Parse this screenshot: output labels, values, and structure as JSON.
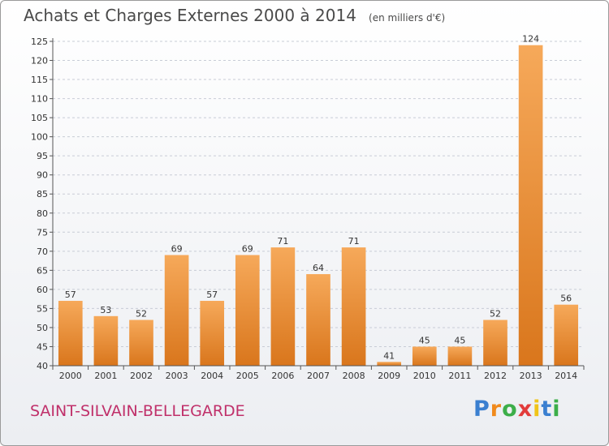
{
  "header": {
    "title": "Achats et Charges Externes 2000 à 2014",
    "unit": "(en milliers d'€)"
  },
  "footer": {
    "commune": "SAINT-SILVAIN-BELLEGARDE"
  },
  "logo": {
    "letters": [
      {
        "char": "P",
        "color": "#3a7fd0"
      },
      {
        "char": "r",
        "color": "#f08a1c"
      },
      {
        "char": "o",
        "color": "#3cae49"
      },
      {
        "char": "x",
        "color": "#e23b3b"
      },
      {
        "char": "i",
        "color": "#f0c419"
      },
      {
        "char": "t",
        "color": "#3a7fd0"
      },
      {
        "char": "i",
        "color": "#3cae49"
      }
    ]
  },
  "colors": {
    "bar_light": "#f6a95a",
    "bar_dark": "#d9761c",
    "grid": "#c8ccd6",
    "axis": "#555555",
    "text": "#333333"
  },
  "chart_data": {
    "type": "bar",
    "title": "Achats et Charges Externes 2000 à 2014",
    "categories": [
      "2000",
      "2001",
      "2002",
      "2003",
      "2004",
      "2005",
      "2006",
      "2007",
      "2008",
      "2009",
      "2010",
      "2011",
      "2012",
      "2013",
      "2014"
    ],
    "values": [
      57,
      53,
      52,
      69,
      57,
      69,
      71,
      64,
      71,
      41,
      45,
      45,
      52,
      124,
      56
    ],
    "ylim": [
      40,
      125
    ],
    "yticks": [
      40,
      45,
      50,
      55,
      60,
      65,
      70,
      75,
      80,
      85,
      90,
      95,
      100,
      105,
      110,
      115,
      120,
      125
    ],
    "grid": true
  }
}
